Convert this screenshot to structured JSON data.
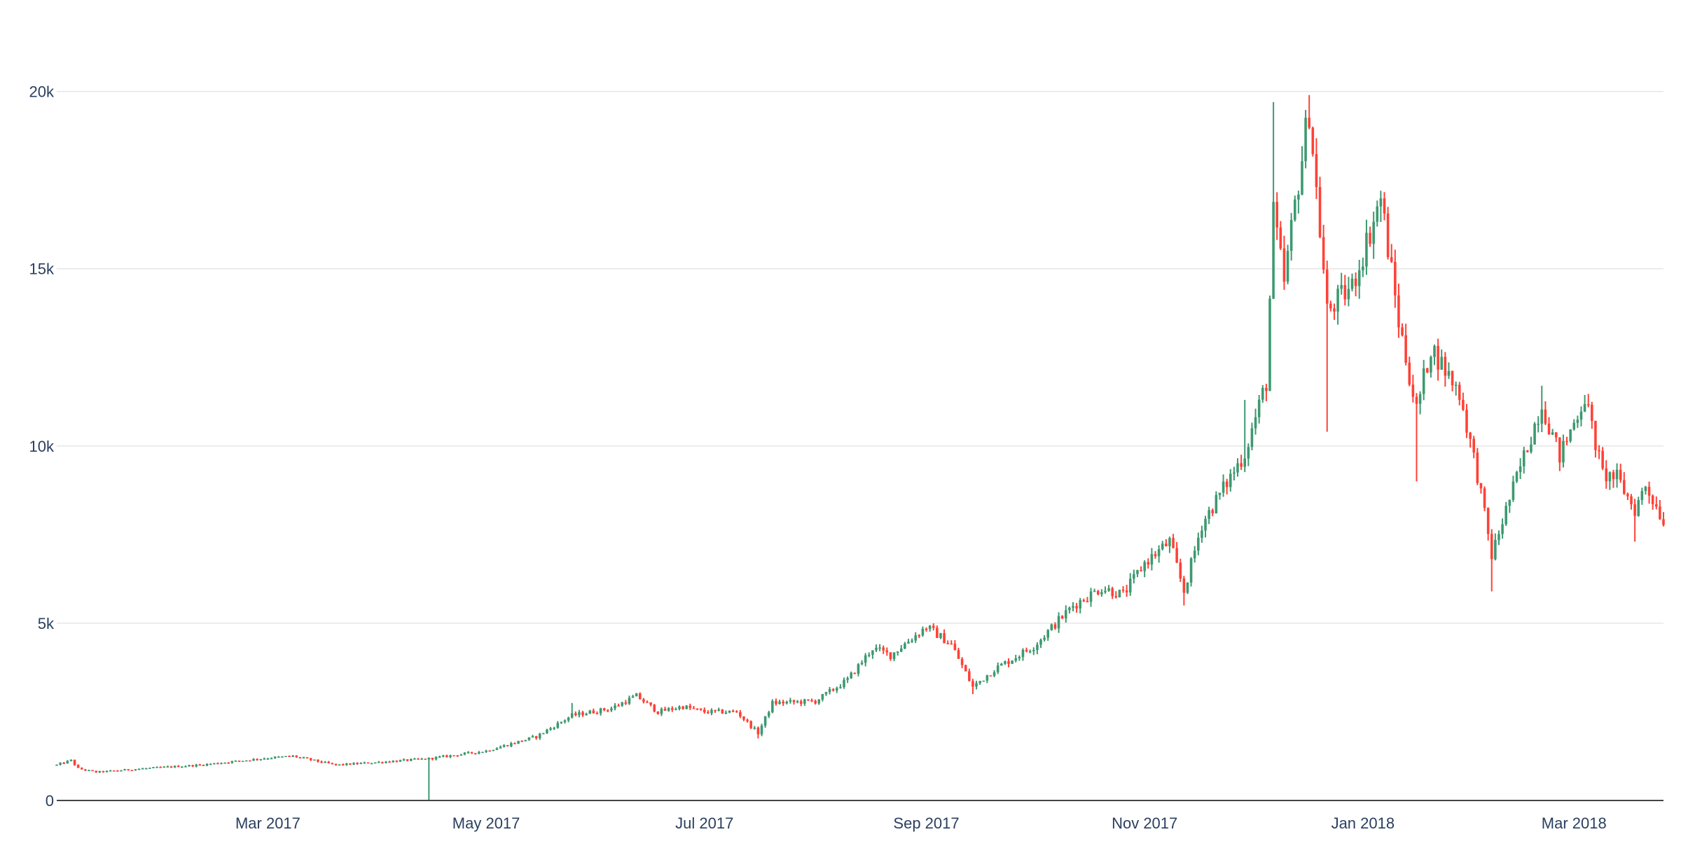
{
  "chart_data": {
    "type": "candlestick",
    "title": "",
    "xlabel": "",
    "ylabel": "",
    "colors": {
      "increasing": "#3d9970",
      "decreasing": "#ff4136",
      "grid": "#e6e6e6",
      "axis": "#444444",
      "tick_text": "#2a3f5f"
    },
    "grid": true,
    "legend": "none",
    "x_range": [
      "2017-01-01",
      "2018-03-26"
    ],
    "ylim": [
      0,
      21000
    ],
    "y_ticks": [
      {
        "value": 0,
        "label": "0"
      },
      {
        "value": 5000,
        "label": "5k"
      },
      {
        "value": 10000,
        "label": "10k"
      },
      {
        "value": 15000,
        "label": "15k"
      },
      {
        "value": 20000,
        "label": "20k"
      }
    ],
    "x_ticks": [
      {
        "date": "2017-03-01",
        "label": "Mar 2017"
      },
      {
        "date": "2017-05-01",
        "label": "May 2017"
      },
      {
        "date": "2017-07-01",
        "label": "Jul 2017"
      },
      {
        "date": "2017-09-01",
        "label": "Sep 2017"
      },
      {
        "date": "2017-11-01",
        "label": "Nov 2017"
      },
      {
        "date": "2018-01-01",
        "label": "Jan 2018"
      },
      {
        "date": "2018-03-01",
        "label": "Mar 2018"
      }
    ],
    "series": [
      {
        "date": "2017-01-01",
        "close": 1000
      },
      {
        "date": "2017-01-05",
        "close": 1130,
        "high": 1160
      },
      {
        "date": "2017-01-07",
        "close": 900
      },
      {
        "date": "2017-01-12",
        "close": 800
      },
      {
        "date": "2017-01-25",
        "close": 900
      },
      {
        "date": "2017-02-10",
        "close": 1000
      },
      {
        "date": "2017-03-01",
        "close": 1200
      },
      {
        "date": "2017-03-08",
        "close": 1250
      },
      {
        "date": "2017-03-20",
        "close": 1000
      },
      {
        "date": "2017-04-01",
        "close": 1080
      },
      {
        "date": "2017-04-15",
        "close": 1180,
        "low": 0
      },
      {
        "date": "2017-05-01",
        "close": 1400
      },
      {
        "date": "2017-05-15",
        "close": 1800
      },
      {
        "date": "2017-05-25",
        "close": 2400,
        "high": 2750
      },
      {
        "date": "2017-06-05",
        "close": 2600
      },
      {
        "date": "2017-06-12",
        "close": 2950
      },
      {
        "date": "2017-06-18",
        "close": 2500
      },
      {
        "date": "2017-06-25",
        "close": 2650
      },
      {
        "date": "2017-07-01",
        "close": 2500
      },
      {
        "date": "2017-07-10",
        "close": 2500
      },
      {
        "date": "2017-07-16",
        "close": 1900,
        "low": 1750
      },
      {
        "date": "2017-07-20",
        "close": 2750
      },
      {
        "date": "2017-08-01",
        "close": 2800
      },
      {
        "date": "2017-08-10",
        "close": 3400
      },
      {
        "date": "2017-08-17",
        "close": 4300
      },
      {
        "date": "2017-08-22",
        "close": 4100
      },
      {
        "date": "2017-09-01",
        "close": 4900
      },
      {
        "date": "2017-09-08",
        "close": 4400
      },
      {
        "date": "2017-09-14",
        "close": 3200,
        "low": 3000
      },
      {
        "date": "2017-09-20",
        "close": 3700
      },
      {
        "date": "2017-10-01",
        "close": 4350
      },
      {
        "date": "2017-10-12",
        "close": 5500
      },
      {
        "date": "2017-10-20",
        "close": 6000
      },
      {
        "date": "2017-10-26",
        "close": 5800
      },
      {
        "date": "2017-11-01",
        "close": 6700
      },
      {
        "date": "2017-11-08",
        "close": 7300
      },
      {
        "date": "2017-11-12",
        "close": 5900,
        "low": 5500
      },
      {
        "date": "2017-11-17",
        "close": 7800
      },
      {
        "date": "2017-11-26",
        "close": 9300
      },
      {
        "date": "2017-11-29",
        "close": 9800,
        "high": 11300
      },
      {
        "date": "2017-12-05",
        "close": 11800
      },
      {
        "date": "2017-12-07",
        "close": 16500,
        "high": 19700
      },
      {
        "date": "2017-12-10",
        "close": 14600
      },
      {
        "date": "2017-12-13",
        "close": 16800
      },
      {
        "date": "2017-12-17",
        "close": 19500,
        "high": 19900
      },
      {
        "date": "2017-12-22",
        "close": 13800,
        "low": 10400
      },
      {
        "date": "2017-12-29",
        "close": 14500
      },
      {
        "date": "2018-01-06",
        "close": 17000,
        "high": 17200
      },
      {
        "date": "2018-01-11",
        "close": 13500
      },
      {
        "date": "2018-01-16",
        "close": 11000,
        "low": 9000
      },
      {
        "date": "2018-01-20",
        "close": 12800
      },
      {
        "date": "2018-01-28",
        "close": 11500
      },
      {
        "date": "2018-02-02",
        "close": 9200
      },
      {
        "date": "2018-02-06",
        "close": 6900,
        "low": 5900
      },
      {
        "date": "2018-02-10",
        "close": 8200
      },
      {
        "date": "2018-02-20",
        "close": 11200,
        "high": 11700
      },
      {
        "date": "2018-02-25",
        "close": 9700
      },
      {
        "date": "2018-03-04",
        "close": 11400
      },
      {
        "date": "2018-03-09",
        "close": 9200
      },
      {
        "date": "2018-03-13",
        "close": 9100
      },
      {
        "date": "2018-03-18",
        "close": 8200,
        "low": 7300
      },
      {
        "date": "2018-03-21",
        "close": 8900
      },
      {
        "date": "2018-03-26",
        "close": 7900
      }
    ]
  }
}
